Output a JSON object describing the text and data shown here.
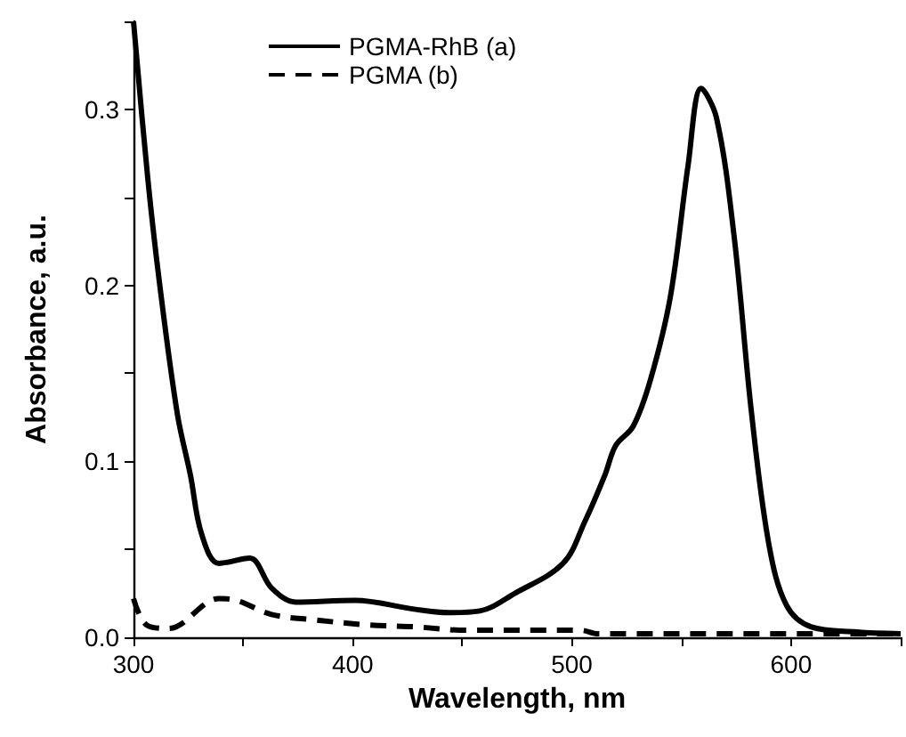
{
  "chart_data": {
    "type": "line",
    "xlabel": "Wavelength, nm",
    "ylabel": "Absorbance, a.u.",
    "xlim": [
      300,
      650
    ],
    "xticks": [
      300,
      {
        "value": 350,
        "label": null
      },
      400,
      {
        "value": 450,
        "label": null
      },
      500,
      {
        "value": 550,
        "label": null
      },
      600,
      {
        "value": 650,
        "label": null
      }
    ],
    "ylim": [
      0,
      0.35
    ],
    "yticks": [
      {
        "value": 0,
        "label": "0.0"
      },
      {
        "value": 0.05,
        "label": null
      },
      0.1,
      {
        "value": 0.15,
        "label": null
      },
      0.2,
      {
        "value": 0.25,
        "label": null
      },
      0.3,
      {
        "value": 0.35,
        "label": null
      }
    ],
    "grid": false,
    "legend": "top",
    "marker": "none",
    "series": [
      {
        "name": "PGMA-RhB (a)",
        "color": "#000000",
        "line_style": "solid",
        "x": [
          300,
          306.5,
          312,
          320,
          326,
          331,
          339,
          353,
          363,
          374,
          401,
          428,
          444,
          458,
          474,
          496,
          506,
          515,
          520,
          528,
          536,
          545,
          553,
          559,
          566,
          574,
          582,
          590,
          598,
          609,
          630,
          650
        ],
        "values": [
          0.35,
          0.261,
          0.2,
          0.127,
          0.092,
          0.059,
          0.042,
          0.045,
          0.028,
          0.02,
          0.021,
          0.016,
          0.014,
          0.015,
          0.025,
          0.042,
          0.066,
          0.092,
          0.109,
          0.12,
          0.147,
          0.194,
          0.268,
          0.312,
          0.295,
          0.228,
          0.127,
          0.052,
          0.018,
          0.006,
          0.003,
          0.002
        ]
      },
      {
        "name": "PGMA (b)",
        "color": "#000000",
        "line_style": "dashed",
        "x": [
          300,
          306,
          316,
          339,
          347,
          363,
          382,
          407,
          428,
          452,
          504,
          512,
          600,
          650
        ],
        "values": [
          0.022,
          0.007,
          0.005,
          0.022,
          0.021,
          0.013,
          0.01,
          0.007,
          0.006,
          0.004,
          0.004,
          0.002,
          0.002,
          0.002
        ]
      }
    ]
  }
}
